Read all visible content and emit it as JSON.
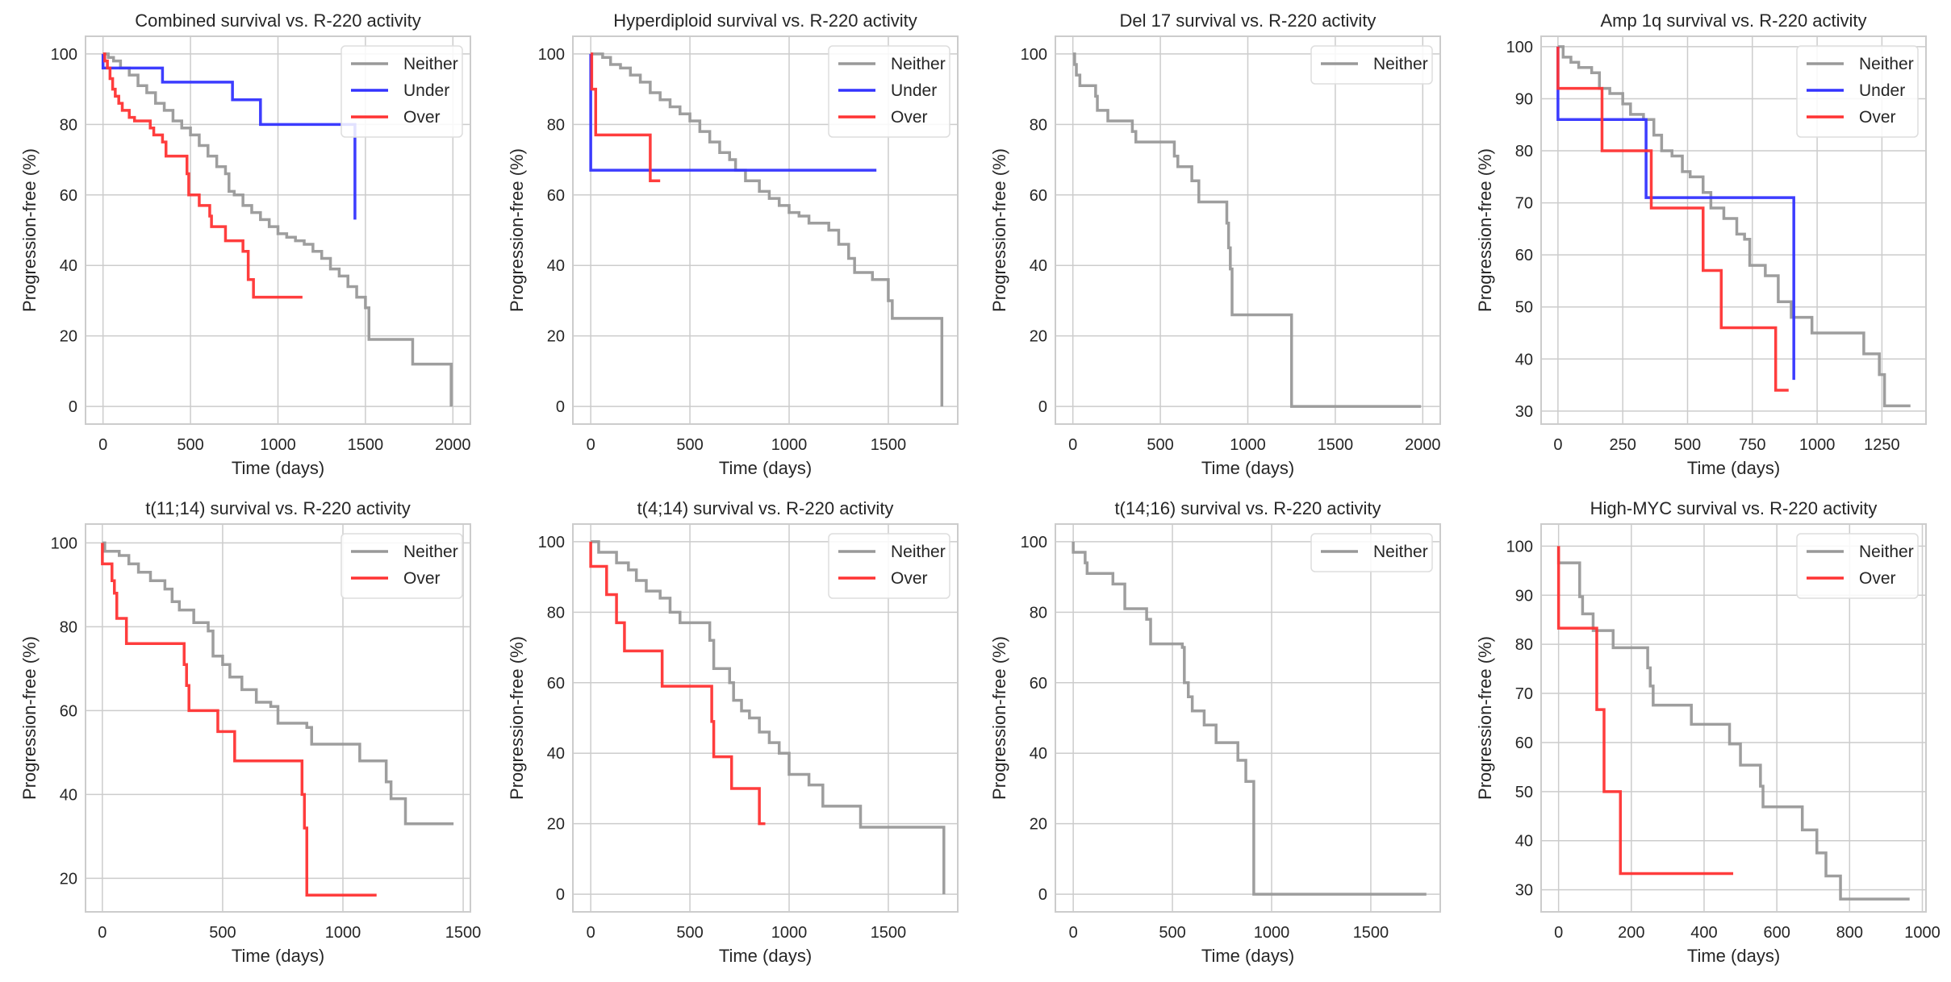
{
  "figure": {
    "xlabel": "Time (days)",
    "ylabel": "Progression-free (%)",
    "series_colors": {
      "Neither": "#999999",
      "Under": "#3333ff",
      "Over": "#ff3333"
    },
    "grid": true,
    "legend_placement": "top-right"
  },
  "chart_data": [
    {
      "type": "line",
      "title": "Combined survival vs. R-220 activity",
      "xlabel": "Time (days)",
      "ylabel": "Progression-free (%)",
      "xlim": [
        -100,
        2100
      ],
      "ylim": [
        -5,
        105
      ],
      "xticks": [
        0,
        500,
        1000,
        1500,
        2000
      ],
      "yticks": [
        0,
        20,
        40,
        60,
        80,
        100
      ],
      "legend": [
        "Neither",
        "Under",
        "Over"
      ],
      "series": [
        {
          "name": "Neither",
          "x": [
            0,
            30,
            60,
            100,
            150,
            200,
            250,
            300,
            350,
            400,
            450,
            500,
            550,
            600,
            650,
            700,
            720,
            750,
            800,
            850,
            900,
            950,
            1000,
            1050,
            1100,
            1150,
            1200,
            1250,
            1300,
            1350,
            1400,
            1450,
            1500,
            1520,
            1760,
            1770,
            1990
          ],
          "y": [
            100,
            99,
            98,
            96,
            94,
            91,
            89,
            86,
            84,
            81,
            79,
            77,
            74,
            71,
            68,
            66,
            61,
            60,
            57,
            55,
            53,
            51,
            49,
            48,
            47,
            46,
            44,
            42,
            39,
            37,
            34,
            31,
            28,
            19,
            19,
            12,
            0
          ]
        },
        {
          "name": "Under",
          "x": [
            0,
            0,
            270,
            340,
            740,
            900,
            1440
          ],
          "y": [
            100,
            96,
            96,
            92,
            87,
            80,
            53
          ]
        },
        {
          "name": "Over",
          "x": [
            0,
            10,
            25,
            40,
            55,
            70,
            90,
            110,
            150,
            180,
            270,
            290,
            340,
            360,
            480,
            490,
            550,
            610,
            620,
            700,
            730,
            800,
            830,
            860,
            900,
            1140
          ],
          "y": [
            100,
            98,
            96,
            93,
            90,
            88,
            86,
            84,
            82,
            81,
            79,
            77,
            75,
            71,
            66,
            60,
            57,
            54,
            51,
            47,
            47,
            44,
            36,
            31,
            31,
            31
          ]
        }
      ]
    },
    {
      "type": "line",
      "title": "Hyperdiploid survival vs. R-220 activity",
      "xlabel": "Time (days)",
      "ylabel": "Progression-free (%)",
      "xlim": [
        -90,
        1850
      ],
      "ylim": [
        -5,
        105
      ],
      "xticks": [
        0,
        500,
        1000,
        1500
      ],
      "yticks": [
        0,
        20,
        40,
        60,
        80,
        100
      ],
      "legend": [
        "Neither",
        "Under",
        "Over"
      ],
      "series": [
        {
          "name": "Neither",
          "x": [
            0,
            60,
            100,
            150,
            200,
            250,
            300,
            350,
            400,
            450,
            500,
            550,
            600,
            650,
            700,
            730,
            780,
            850,
            900,
            950,
            1000,
            1050,
            1100,
            1150,
            1200,
            1250,
            1300,
            1330,
            1400,
            1420,
            1500,
            1520,
            1770
          ],
          "y": [
            100,
            99,
            97,
            96,
            94,
            92,
            89,
            87,
            85,
            83,
            81,
            78,
            75,
            72,
            70,
            67,
            64,
            61,
            59,
            57,
            55,
            54,
            52,
            52,
            50,
            46,
            42,
            38,
            38,
            36,
            30,
            25,
            0
          ]
        },
        {
          "name": "Under",
          "x": [
            0,
            0,
            1440
          ],
          "y": [
            100,
            67,
            67
          ]
        },
        {
          "name": "Over",
          "x": [
            0,
            5,
            25,
            300,
            350
          ],
          "y": [
            100,
            90,
            77,
            64,
            64
          ]
        }
      ]
    },
    {
      "type": "line",
      "title": "Del 17 survival vs. R-220 activity",
      "xlabel": "Time (days)",
      "ylabel": "Progression-free (%)",
      "xlim": [
        -100,
        2100
      ],
      "ylim": [
        -5,
        105
      ],
      "xticks": [
        0,
        500,
        1000,
        1500,
        2000
      ],
      "yticks": [
        0,
        20,
        40,
        60,
        80,
        100
      ],
      "legend": [
        "Neither"
      ],
      "series": [
        {
          "name": "Neither",
          "x": [
            0,
            10,
            20,
            40,
            130,
            140,
            200,
            340,
            360,
            580,
            600,
            680,
            720,
            880,
            890,
            900,
            910,
            1250,
            1990
          ],
          "y": [
            100,
            97,
            94,
            91,
            88,
            84,
            81,
            78,
            75,
            71,
            68,
            64,
            58,
            52,
            45,
            39,
            26,
            0,
            0
          ]
        }
      ]
    },
    {
      "type": "line",
      "title": "Amp 1q survival vs. R-220 activity",
      "xlabel": "Time (days)",
      "ylabel": "Progression-free (%)",
      "xlim": [
        -65,
        1420
      ],
      "ylim": [
        27.5,
        102
      ],
      "xticks": [
        0,
        250,
        500,
        750,
        1000,
        1250
      ],
      "yticks": [
        30,
        40,
        50,
        60,
        70,
        80,
        90,
        100
      ],
      "legend": [
        "Neither",
        "Under",
        "Over"
      ],
      "series": [
        {
          "name": "Neither",
          "x": [
            0,
            20,
            50,
            80,
            130,
            160,
            200,
            250,
            280,
            330,
            370,
            400,
            440,
            480,
            510,
            560,
            590,
            640,
            690,
            720,
            740,
            800,
            850,
            900,
            980,
            1180,
            1240,
            1260,
            1360
          ],
          "y": [
            100,
            98,
            97,
            96,
            95,
            92,
            91,
            89,
            87,
            86,
            83,
            80,
            79,
            76,
            75,
            72,
            69,
            67,
            64,
            63,
            58,
            56,
            51,
            48,
            45,
            41,
            37,
            31,
            31
          ]
        },
        {
          "name": "Under",
          "x": [
            0,
            0,
            270,
            340,
            910
          ],
          "y": [
            100,
            86,
            86,
            71,
            36
          ]
        },
        {
          "name": "Over",
          "x": [
            0,
            0,
            170,
            360,
            560,
            630,
            840,
            890
          ],
          "y": [
            100,
            92,
            80,
            69,
            57,
            46,
            34,
            34
          ]
        }
      ]
    },
    {
      "type": "line",
      "title": "t(11;14) survival vs. R-220 activity",
      "xlabel": "Time (days)",
      "ylabel": "Progression-free (%)",
      "xlim": [
        -70,
        1530
      ],
      "ylim": [
        12,
        104.5
      ],
      "xticks": [
        0,
        500,
        1000,
        1500
      ],
      "yticks": [
        20,
        40,
        60,
        80,
        100
      ],
      "legend": [
        "Neither",
        "Over"
      ],
      "series": [
        {
          "name": "Neither",
          "x": [
            0,
            10,
            70,
            110,
            150,
            200,
            260,
            290,
            320,
            380,
            440,
            460,
            500,
            530,
            580,
            640,
            700,
            730,
            850,
            870,
            1070,
            1180,
            1200,
            1260,
            1460
          ],
          "y": [
            100,
            98,
            97,
            95,
            93,
            91,
            89,
            86,
            84,
            81,
            79,
            73,
            71,
            68,
            65,
            62,
            61,
            57,
            56,
            52,
            48,
            43,
            39,
            33,
            33
          ]
        },
        {
          "name": "Over",
          "x": [
            0,
            0,
            30,
            40,
            50,
            60,
            100,
            270,
            340,
            350,
            360,
            470,
            480,
            550,
            830,
            840,
            850,
            1140
          ],
          "y": [
            100,
            95,
            95,
            91,
            88,
            82,
            76,
            76,
            71,
            66,
            60,
            60,
            55,
            48,
            40,
            32,
            16,
            16
          ]
        }
      ]
    },
    {
      "type": "line",
      "title": "t(4;14) survival vs. R-220 activity",
      "xlabel": "Time (days)",
      "ylabel": "Progression-free (%)",
      "xlim": [
        -90,
        1850
      ],
      "ylim": [
        -5,
        105
      ],
      "xticks": [
        0,
        500,
        1000,
        1500
      ],
      "yticks": [
        0,
        20,
        40,
        60,
        80,
        100
      ],
      "legend": [
        "Neither",
        "Over"
      ],
      "series": [
        {
          "name": "Neither",
          "x": [
            0,
            40,
            130,
            190,
            230,
            280,
            350,
            400,
            450,
            560,
            600,
            620,
            700,
            720,
            760,
            800,
            850,
            900,
            950,
            1000,
            1100,
            1170,
            1360,
            1780
          ],
          "y": [
            100,
            97,
            94,
            92,
            89,
            86,
            84,
            80,
            77,
            77,
            72,
            64,
            60,
            55,
            52,
            50,
            46,
            43,
            40,
            34,
            31,
            25,
            19,
            0
          ]
        },
        {
          "name": "Over",
          "x": [
            0,
            0,
            80,
            130,
            170,
            360,
            610,
            620,
            710,
            850,
            880
          ],
          "y": [
            100,
            93,
            85,
            77,
            69,
            59,
            49,
            39,
            30,
            20,
            20
          ]
        }
      ]
    },
    {
      "type": "line",
      "title": "t(14;16) survival vs. R-220 activity",
      "xlabel": "Time (days)",
      "ylabel": "Progression-free (%)",
      "xlim": [
        -90,
        1850
      ],
      "ylim": [
        -5,
        105
      ],
      "xticks": [
        0,
        500,
        1000,
        1500
      ],
      "yticks": [
        0,
        20,
        40,
        60,
        80,
        100
      ],
      "legend": [
        "Neither"
      ],
      "series": [
        {
          "name": "Neither",
          "x": [
            0,
            0,
            60,
            70,
            200,
            260,
            370,
            390,
            550,
            560,
            580,
            600,
            660,
            720,
            830,
            870,
            910,
            1780
          ],
          "y": [
            100,
            97,
            94,
            91,
            88,
            81,
            78,
            71,
            70,
            60,
            56,
            52,
            48,
            43,
            38,
            32,
            0,
            0
          ]
        }
      ]
    },
    {
      "type": "line",
      "title": "High-MYC survival vs. R-220 activity",
      "xlabel": "Time (days)",
      "ylabel": "Progression-free (%)",
      "xlim": [
        -48,
        1010
      ],
      "ylim": [
        25.5,
        104.5
      ],
      "xticks": [
        0,
        200,
        400,
        600,
        800,
        1000
      ],
      "yticks": [
        30,
        40,
        50,
        60,
        70,
        80,
        90,
        100
      ],
      "legend": [
        "Neither",
        "Over"
      ],
      "series": [
        {
          "name": "Neither",
          "x": [
            0,
            0,
            58,
            66,
            95,
            150,
            245,
            252,
            260,
            365,
            470,
            500,
            555,
            562,
            670,
            710,
            735,
            775,
            965
          ],
          "y": [
            100,
            96.6,
            89.7,
            86.2,
            82.8,
            79.3,
            75.2,
            71.5,
            67.6,
            63.7,
            59.7,
            55.4,
            51.1,
            46.9,
            42.2,
            37.5,
            32.8,
            28.1,
            28.1
          ]
        },
        {
          "name": "Over",
          "x": [
            0,
            0,
            105,
            125,
            170,
            480
          ],
          "y": [
            100,
            83.3,
            66.7,
            50,
            33.3,
            33.3
          ]
        }
      ]
    }
  ]
}
